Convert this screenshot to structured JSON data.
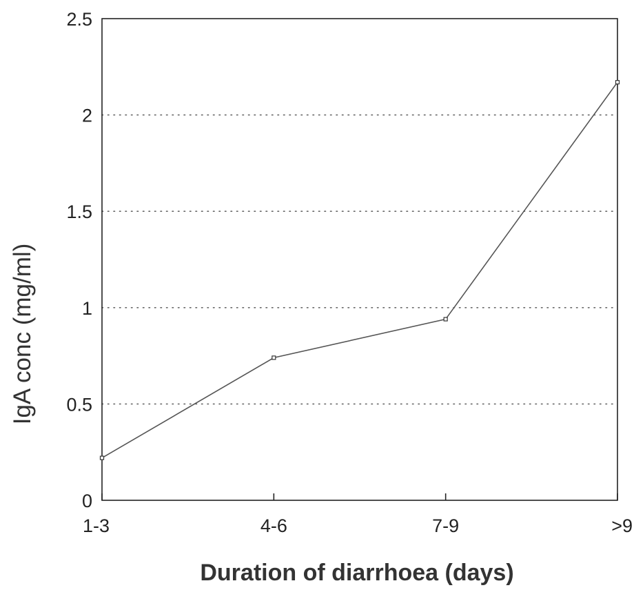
{
  "chart_data": {
    "type": "line",
    "title": "",
    "xlabel": "Duration of diarrhoea (days)",
    "ylabel": "IgA conc (mg/ml)",
    "categories": [
      "1-3",
      "4-6",
      "7-9",
      ">9"
    ],
    "series": [
      {
        "values": [
          0.22,
          0.74,
          0.94,
          2.17
        ]
      }
    ],
    "ylim": [
      0,
      2.5
    ],
    "yticks": [
      0,
      0.5,
      1,
      1.5,
      2,
      2.5
    ],
    "ytick_labels": [
      "0",
      "0.5",
      "1",
      "1.5",
      "2",
      "2.5"
    ],
    "grid": "horizontal dotted",
    "legend": "none",
    "colors": {
      "line": "#555555",
      "axis": "#222222",
      "grid": "#666666"
    }
  }
}
